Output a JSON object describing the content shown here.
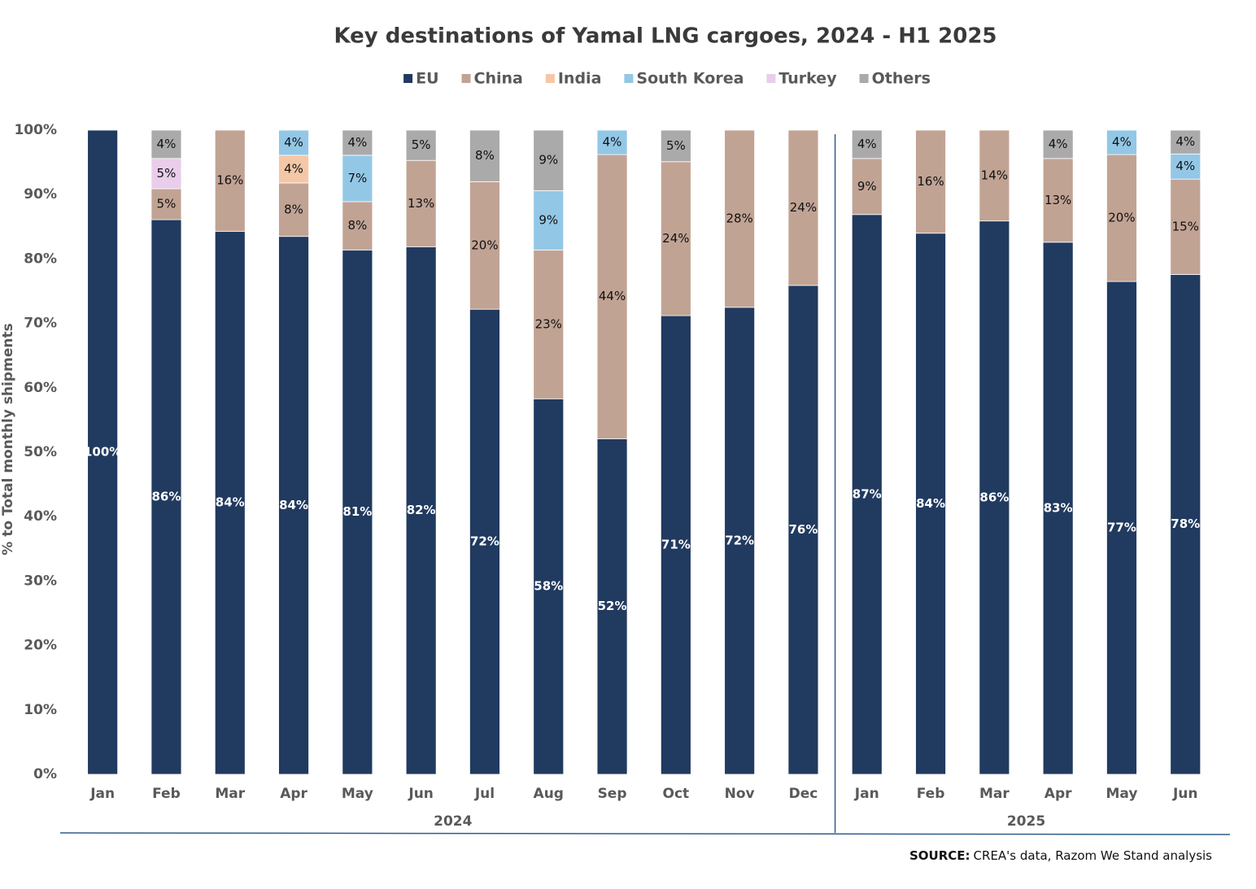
{
  "chart_data": {
    "type": "stacked_bar",
    "title": "Key destinations of Yamal LNG cargoes, 2024 - H1 2025",
    "y_label": "% to Total monthly shipments",
    "categories": [
      "Jan",
      "Feb",
      "Mar",
      "Apr",
      "May",
      "Jun",
      "Jul",
      "Aug",
      "Sep",
      "Oct",
      "Nov",
      "Dec",
      "Jan",
      "Feb",
      "Mar",
      "Apr",
      "May",
      "Jun"
    ],
    "category_groups": [
      {
        "label": "2024",
        "size": 12
      },
      {
        "label": "2025",
        "size": 6
      }
    ],
    "ylim": [
      0,
      100
    ],
    "yticks": [
      {
        "value": 0,
        "label": "0%"
      },
      {
        "value": 10,
        "label": "10%"
      },
      {
        "value": 20,
        "label": "20%"
      },
      {
        "value": 30,
        "label": "30%"
      },
      {
        "value": 40,
        "label": "40%"
      },
      {
        "value": 50,
        "label": "50%"
      },
      {
        "value": 60,
        "label": "60%"
      },
      {
        "value": 70,
        "label": "70%"
      },
      {
        "value": 80,
        "label": "80%"
      },
      {
        "value": 90,
        "label": "90%"
      },
      {
        "value": 100,
        "label": "100%"
      }
    ],
    "legend": "top",
    "series": [
      {
        "name": "EU",
        "color": "#213a5f",
        "label_color": "#ffffff",
        "values": [
          100,
          86.1,
          84.3,
          83.5,
          81.4,
          81.9,
          72.2,
          58.3,
          52.1,
          71.2,
          72.5,
          75.9,
          86.9,
          84.0,
          85.9,
          82.6,
          76.5,
          77.6
        ],
        "value_labels": [
          "100%",
          "86%",
          "84%",
          "84%",
          "81%",
          "82%",
          "72%",
          "58%",
          "52%",
          "71%",
          "72%",
          "76%",
          "87%",
          "84%",
          "86%",
          "83%",
          "77%",
          "78%"
        ]
      },
      {
        "name": "China",
        "color": "#c1a394",
        "label_color": "#111111",
        "values": [
          null,
          4.8,
          15.7,
          8.3,
          7.5,
          13.4,
          19.8,
          23.1,
          44.1,
          23.9,
          27.5,
          24.1,
          8.7,
          16.0,
          14.1,
          13.0,
          19.7,
          14.8
        ],
        "value_labels": [
          null,
          "5%",
          "16%",
          "8%",
          "8%",
          "13%",
          "20%",
          "23%",
          "44%",
          "24%",
          "28%",
          "24%",
          "9%",
          "16%",
          "14%",
          "13%",
          "20%",
          "15%"
        ]
      },
      {
        "name": "India",
        "color": "#f4c7a6",
        "label_color": "#111111",
        "values": [
          null,
          null,
          null,
          4.3,
          null,
          null,
          null,
          null,
          null,
          null,
          null,
          null,
          null,
          null,
          null,
          null,
          null,
          null
        ],
        "value_labels": [
          null,
          null,
          null,
          "4%",
          null,
          null,
          null,
          null,
          null,
          null,
          null,
          null,
          null,
          null,
          null,
          null,
          null,
          null
        ]
      },
      {
        "name": "South Korea",
        "color": "#93c7e6",
        "label_color": "#111111",
        "values": [
          null,
          null,
          null,
          3.9,
          7.2,
          null,
          null,
          9.2,
          3.8,
          null,
          null,
          null,
          null,
          null,
          null,
          null,
          3.8,
          3.9
        ],
        "value_labels": [
          null,
          null,
          null,
          "4%",
          "7%",
          null,
          null,
          "9%",
          "4%",
          null,
          null,
          null,
          null,
          null,
          null,
          null,
          "4%",
          "4%"
        ]
      },
      {
        "name": "Turkey",
        "color": "#e9cdea",
        "label_color": "#111111",
        "values": [
          null,
          4.7,
          null,
          null,
          null,
          null,
          null,
          null,
          null,
          null,
          null,
          null,
          null,
          null,
          null,
          null,
          null,
          null
        ],
        "value_labels": [
          null,
          "5%",
          null,
          null,
          null,
          null,
          null,
          null,
          null,
          null,
          null,
          null,
          null,
          null,
          null,
          null,
          null,
          null
        ]
      },
      {
        "name": "Others",
        "color": "#aaaaaa",
        "label_color": "#111111",
        "values": [
          null,
          4.4,
          null,
          null,
          3.9,
          4.7,
          8.0,
          9.4,
          null,
          4.9,
          null,
          null,
          4.4,
          null,
          null,
          4.4,
          null,
          3.7
        ],
        "value_labels": [
          null,
          "4%",
          null,
          null,
          "4%",
          "5%",
          "8%",
          "9%",
          null,
          "5%",
          null,
          null,
          "4%",
          null,
          null,
          "4%",
          null,
          "4%"
        ]
      }
    ],
    "source": {
      "label": "SOURCE:",
      "text": "CREA's data, Razom We Stand analysis"
    }
  }
}
